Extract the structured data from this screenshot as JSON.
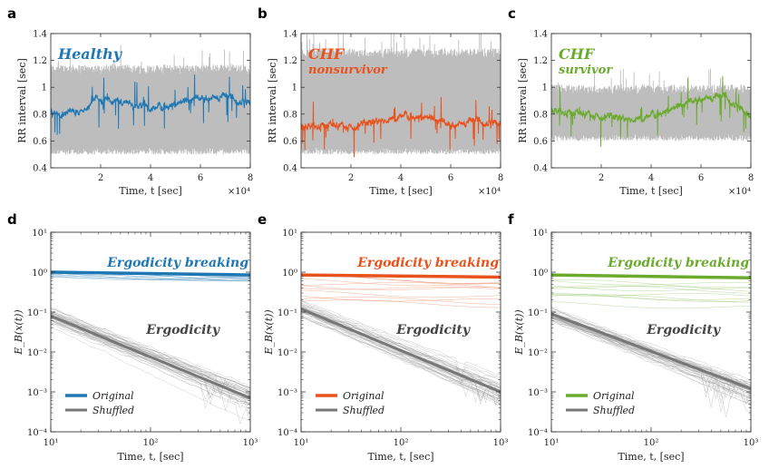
{
  "colors": {
    "healthy": "#1f77b4",
    "chf_nonsurvivor": "#e8521c",
    "chf_survivor": "#6aab2e",
    "shuffled": "#777777",
    "band": "#bdbdbd",
    "text_dark": "#444444"
  },
  "chart_data": [
    {
      "panel": "a",
      "type": "line",
      "title": "Healthy",
      "subtitle": "",
      "xlabel": "Time, t [sec]",
      "ylabel": "RR interval [sec]",
      "x_exponent": "×10⁴",
      "xlim": [
        0,
        8
      ],
      "ylim": [
        0.4,
        1.4
      ],
      "xticks": [
        "2",
        "4",
        "6",
        "8"
      ],
      "yticks": [
        "0.4",
        "0.6",
        "0.8",
        "1",
        "1.2",
        "1.4"
      ],
      "series": [
        {
          "name": "RR interval",
          "x": [
            0,
            1,
            2,
            3,
            4,
            5,
            6,
            7,
            8
          ],
          "y": [
            0.82,
            0.8,
            0.92,
            0.88,
            0.85,
            0.88,
            0.92,
            0.93,
            0.88
          ]
        },
        {
          "name": "Shuffled band",
          "low": 0.55,
          "high": 1.1
        }
      ]
    },
    {
      "panel": "b",
      "type": "line",
      "title": "CHF",
      "subtitle": "nonsurvivor",
      "xlabel": "Time, t [sec]",
      "ylabel": "RR interval [sec]",
      "x_exponent": "×10⁴",
      "xlim": [
        0,
        8
      ],
      "ylim": [
        0.4,
        1.4
      ],
      "xticks": [
        "2",
        "4",
        "6",
        "8"
      ],
      "yticks": [
        "0.4",
        "0.6",
        "0.8",
        "1",
        "1.2",
        "1.4"
      ],
      "series": [
        {
          "name": "RR interval",
          "x": [
            0,
            1,
            2,
            3,
            4,
            5,
            6,
            7,
            8
          ],
          "y": [
            0.7,
            0.71,
            0.71,
            0.74,
            0.8,
            0.78,
            0.72,
            0.75,
            0.73
          ]
        },
        {
          "name": "Shuffled band",
          "low": 0.55,
          "high": 1.22
        }
      ]
    },
    {
      "panel": "c",
      "type": "line",
      "title": "CHF",
      "subtitle": "survivor",
      "xlabel": "Time, t [sec]",
      "ylabel": "RR interval [sec]",
      "x_exponent": "×10⁴",
      "xlim": [
        0,
        8
      ],
      "ylim": [
        0.4,
        1.4
      ],
      "xticks": [
        "2",
        "4",
        "6",
        "8"
      ],
      "yticks": [
        "0.4",
        "0.6",
        "0.8",
        "1",
        "1.2",
        "1.4"
      ],
      "series": [
        {
          "name": "RR interval",
          "x": [
            0,
            1,
            2,
            3,
            4,
            5,
            6,
            7,
            8
          ],
          "y": [
            0.82,
            0.8,
            0.79,
            0.76,
            0.8,
            0.85,
            0.92,
            0.93,
            0.78
          ]
        },
        {
          "name": "Shuffled band",
          "low": 0.65,
          "high": 0.95
        }
      ]
    },
    {
      "panel": "d",
      "type": "line",
      "scale": "log-log",
      "xlabel": "Time, t, [sec]",
      "ylabel": "E_B(x(t))",
      "xlim": [
        10,
        1000
      ],
      "ylim": [
        0.0001,
        10
      ],
      "xticks": [
        "10¹",
        "10²",
        "10³"
      ],
      "yticks": [
        "10⁻⁴",
        "10⁻³",
        "10⁻²",
        "10⁻¹",
        "10⁰",
        "10¹"
      ],
      "annotations": [
        "Ergodicity breaking",
        "Ergodicity"
      ],
      "legend": [
        "Original",
        "Shuffled"
      ],
      "series": [
        {
          "name": "Original",
          "x": [
            10,
            1000
          ],
          "y": [
            1.0,
            0.85
          ]
        },
        {
          "name": "Shuffled",
          "x": [
            10,
            1000
          ],
          "y": [
            0.08,
            0.0007
          ]
        }
      ]
    },
    {
      "panel": "e",
      "type": "line",
      "scale": "log-log",
      "xlabel": "Time, t, [sec]",
      "ylabel": "E_B(x(t))",
      "xlim": [
        10,
        1000
      ],
      "ylim": [
        0.0001,
        10
      ],
      "xticks": [
        "10¹",
        "10²",
        "10³"
      ],
      "yticks": [
        "10⁻⁴",
        "10⁻³",
        "10⁻²",
        "10⁻¹",
        "10⁰",
        "10¹"
      ],
      "annotations": [
        "Ergodicity breaking",
        "Ergodicity"
      ],
      "legend": [
        "Original",
        "Shuffled"
      ],
      "series": [
        {
          "name": "Original",
          "x": [
            10,
            1000
          ],
          "y": [
            0.85,
            0.75
          ]
        },
        {
          "name": "Shuffled",
          "x": [
            10,
            1000
          ],
          "y": [
            0.12,
            0.001
          ]
        }
      ]
    },
    {
      "panel": "f",
      "type": "line",
      "scale": "log-log",
      "xlabel": "Time, t, [sec]",
      "ylabel": "E_B(x(t))",
      "xlim": [
        10,
        1000
      ],
      "ylim": [
        0.0001,
        10
      ],
      "xticks": [
        "10¹",
        "10²",
        "10³"
      ],
      "yticks": [
        "10⁻⁴",
        "10⁻³",
        "10⁻²",
        "10⁻¹",
        "10⁰",
        "10¹"
      ],
      "annotations": [
        "Ergodicity breaking",
        "Ergodicity"
      ],
      "legend": [
        "Original",
        "Shuffled"
      ],
      "series": [
        {
          "name": "Original",
          "x": [
            10,
            1000
          ],
          "y": [
            0.85,
            0.72
          ]
        },
        {
          "name": "Shuffled",
          "x": [
            10,
            1000
          ],
          "y": [
            0.09,
            0.0012
          ]
        }
      ]
    }
  ]
}
